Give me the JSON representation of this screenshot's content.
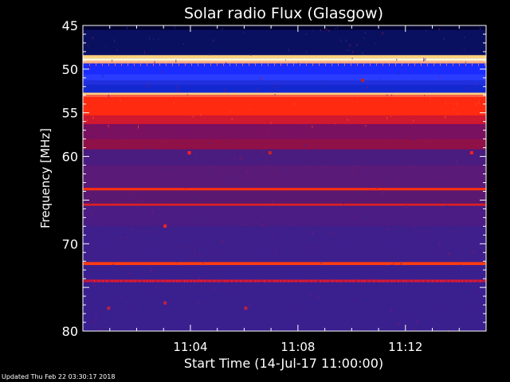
{
  "chart_data": {
    "type": "heatmap",
    "title": "Solar radio Flux (Glasgow)",
    "xlabel": "Start Time (14-Jul-17 11:00:00)",
    "ylabel": "Frequency [MHz]",
    "x_ticks": [
      "11:04",
      "11:08",
      "11:12"
    ],
    "x_tick_minutes": [
      4,
      8,
      12
    ],
    "xlim_minutes": [
      0,
      15
    ],
    "y_ticks": [
      45,
      50,
      55,
      60,
      65,
      70,
      75,
      80
    ],
    "y_tick_labels": [
      "45",
      "50",
      "55",
      "60",
      "",
      "70",
      "",
      "80"
    ],
    "ylim": [
      45,
      80
    ],
    "colors": {
      "background": "#000000",
      "low": "#3a1f8f",
      "mid": "#b0103a",
      "high": "#ff2a10",
      "saturated": "#fff8d0",
      "blue_band": "#1a2cff",
      "navy": "#0a1060"
    },
    "bands": [
      {
        "from": 45.0,
        "to": 45.5,
        "color": "#000030"
      },
      {
        "from": 45.5,
        "to": 48.4,
        "color": "#0a1060"
      },
      {
        "from": 48.4,
        "to": 48.75,
        "color": "#ffd27a"
      },
      {
        "from": 48.75,
        "to": 49.05,
        "color": "#fff8d0"
      },
      {
        "from": 49.05,
        "to": 49.35,
        "color": "#ffb080"
      },
      {
        "from": 49.35,
        "to": 50.6,
        "color": "#1a2cff"
      },
      {
        "from": 50.6,
        "to": 51.3,
        "color": "#2a3cff"
      },
      {
        "from": 51.3,
        "to": 51.8,
        "color": "#2030e0"
      },
      {
        "from": 51.8,
        "to": 52.7,
        "color": "#1428d0"
      },
      {
        "from": 52.7,
        "to": 52.95,
        "color": "#ffd080"
      },
      {
        "from": 52.95,
        "to": 53.2,
        "color": "#ff6040"
      },
      {
        "from": 53.2,
        "to": 55.3,
        "color": "#ff2a10"
      },
      {
        "from": 55.3,
        "to": 56.3,
        "color": "#d01830"
      },
      {
        "from": 56.3,
        "to": 58.0,
        "color": "#7a1060"
      },
      {
        "from": 58.0,
        "to": 59.2,
        "color": "#901048"
      },
      {
        "from": 59.2,
        "to": 61.0,
        "color": "#4a1c80"
      },
      {
        "from": 61.0,
        "to": 63.6,
        "color": "#5a1a78"
      },
      {
        "from": 63.6,
        "to": 63.9,
        "color": "#ff3010"
      },
      {
        "from": 63.9,
        "to": 65.4,
        "color": "#5a1870"
      },
      {
        "from": 65.4,
        "to": 65.65,
        "color": "#e02020"
      },
      {
        "from": 65.65,
        "to": 68.0,
        "color": "#4a1c84"
      },
      {
        "from": 68.0,
        "to": 72.1,
        "color": "#3e1f8c"
      },
      {
        "from": 72.1,
        "to": 72.45,
        "color": "#ff3c10"
      },
      {
        "from": 72.45,
        "to": 74.1,
        "color": "#3a1f8f"
      },
      {
        "from": 74.1,
        "to": 74.4,
        "color": "#c01840"
      },
      {
        "from": 74.4,
        "to": 80.0,
        "color": "#3a1f8f"
      }
    ],
    "footer": "Updated Thu Feb 22 03:30:17 2018"
  }
}
